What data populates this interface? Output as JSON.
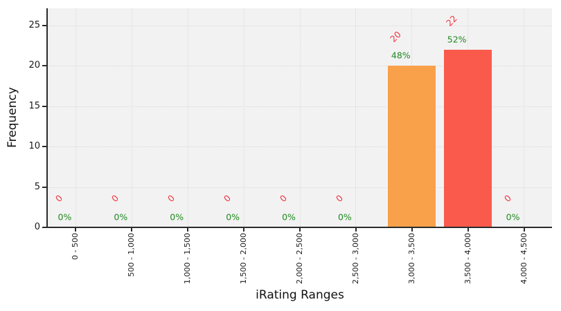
{
  "figure": {
    "background": "#ffffff",
    "plot_background": "#f2f2f3",
    "grid_color": "#d9d9d9",
    "axis_color": "#2b2b2b",
    "count_label_color": "#ef3340",
    "percent_label_color": "#1e8a1e"
  },
  "chart_data": {
    "type": "bar",
    "title": "",
    "xlabel": "iRating Ranges",
    "ylabel": "Frequency",
    "categories": [
      "0 - 500",
      "500 - 1,000",
      "1,000 - 1,500",
      "1,500 - 2,000",
      "2,000 - 2,500",
      "2,500 - 3,000",
      "3,000 - 3,500",
      "3,500 - 4,000",
      "4,000 - 4,500"
    ],
    "values": [
      0,
      0,
      0,
      0,
      0,
      0,
      20,
      22,
      0
    ],
    "count_labels": [
      "0",
      "0",
      "0",
      "0",
      "0",
      "0",
      "20",
      "22",
      "0"
    ],
    "percent_labels": [
      "0%",
      "0%",
      "0%",
      "0%",
      "0%",
      "0%",
      "48%",
      "52%",
      "0%"
    ],
    "bar_colors": [
      null,
      null,
      null,
      null,
      null,
      null,
      "#f9a04a",
      "#fa5a4b",
      null
    ],
    "yticks": [
      0,
      5,
      10,
      15,
      20,
      25
    ],
    "ylim": [
      0,
      27.1
    ],
    "grid": true,
    "legend": false
  }
}
